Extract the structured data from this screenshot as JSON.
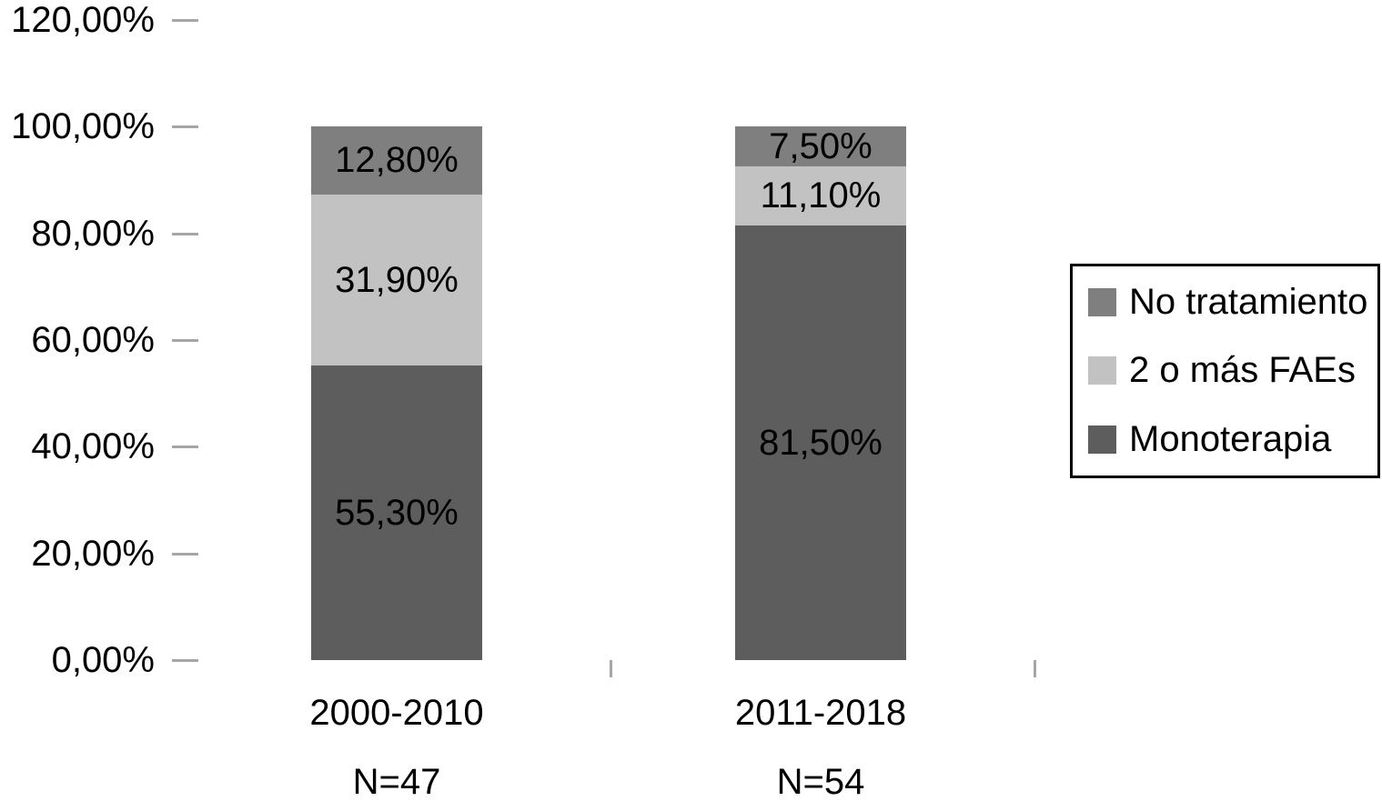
{
  "chart_data": {
    "type": "bar",
    "subtype": "stacked-percent",
    "title": "",
    "xlabel": "",
    "ylabel": "",
    "categories": [
      "2000-2010",
      "2011-2018"
    ],
    "category_sublabels": [
      "N=47",
      "N=54"
    ],
    "series": [
      {
        "name": "Monoterapia",
        "color": "#5d5d5d",
        "values": [
          55.3,
          81.5
        ],
        "data_labels": [
          "55,30%",
          "81,50%"
        ]
      },
      {
        "name": "2 o más FAEs",
        "color": "#c2c2c2",
        "values": [
          31.9,
          11.1
        ],
        "data_labels": [
          "31,90%",
          "11,10%"
        ]
      },
      {
        "name": "No tratamiento",
        "color": "#7f7f7f",
        "values": [
          12.8,
          7.5
        ],
        "data_labels": [
          "12,80%",
          "7,50%"
        ]
      }
    ],
    "yaxis": {
      "min": 0,
      "max": 120,
      "step": 20,
      "tick_labels": [
        "0,00%",
        "20,00%",
        "40,00%",
        "60,00%",
        "80,00%",
        "100,00%",
        "120,00%"
      ]
    },
    "legend": {
      "position": "right",
      "entries": [
        {
          "label": "No tratamiento",
          "color": "#7f7f7f"
        },
        {
          "label": "2 o más FAEs",
          "color": "#c2c2c2"
        },
        {
          "label": "Monoterapia",
          "color": "#5d5d5d"
        }
      ],
      "border_color": "#000000"
    },
    "grid": false,
    "axis_color": "#a6a6a6",
    "text_color": "#000000",
    "background_color": "#ffffff"
  }
}
